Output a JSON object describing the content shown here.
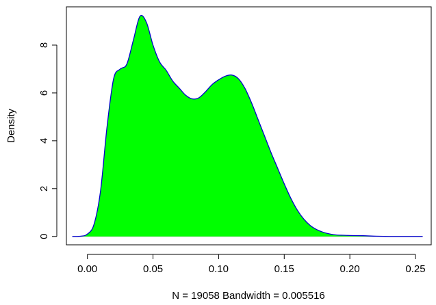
{
  "chart_data": {
    "type": "area",
    "title": "",
    "xlabel": "N = 19058   Bandwidth = 0.005516",
    "ylabel": "Density",
    "xlim": [
      -0.016,
      0.262
    ],
    "ylim": [
      -0.35,
      9.6
    ],
    "x_ticks": [
      0.0,
      0.05,
      0.1,
      0.15,
      0.2,
      0.25
    ],
    "x_tick_labels": [
      "0.00",
      "0.05",
      "0.10",
      "0.15",
      "0.20",
      "0.25"
    ],
    "y_ticks": [
      0,
      2,
      4,
      6,
      8
    ],
    "y_tick_labels": [
      "0",
      "2",
      "4",
      "6",
      "8"
    ],
    "grid": false,
    "fill_color": "#00ff00",
    "line_color": "#0000cc",
    "baseline_color": "#b3b3b3",
    "series": [
      {
        "x": [
          -0.0115,
          -0.005,
          0.0,
          0.005,
          0.01,
          0.015,
          0.02,
          0.025,
          0.03,
          0.035,
          0.04,
          0.045,
          0.05,
          0.055,
          0.06,
          0.065,
          0.07,
          0.075,
          0.08,
          0.085,
          0.09,
          0.095,
          0.1,
          0.105,
          0.11,
          0.115,
          0.12,
          0.125,
          0.13,
          0.135,
          0.14,
          0.145,
          0.15,
          0.155,
          0.16,
          0.165,
          0.17,
          0.175,
          0.18,
          0.185,
          0.19,
          0.195,
          0.2,
          0.21,
          0.22,
          0.23,
          0.24,
          0.2555
        ],
        "y": [
          0.0,
          0.01,
          0.1,
          0.5,
          1.9,
          4.6,
          6.6,
          7.0,
          7.2,
          8.2,
          9.2,
          8.95,
          8.0,
          7.3,
          6.95,
          6.5,
          6.2,
          5.9,
          5.75,
          5.8,
          6.05,
          6.35,
          6.55,
          6.7,
          6.75,
          6.6,
          6.2,
          5.6,
          4.9,
          4.2,
          3.5,
          2.85,
          2.2,
          1.6,
          1.1,
          0.72,
          0.45,
          0.28,
          0.17,
          0.1,
          0.06,
          0.05,
          0.04,
          0.03,
          0.01,
          0.0,
          0.0,
          0.0
        ]
      }
    ]
  }
}
